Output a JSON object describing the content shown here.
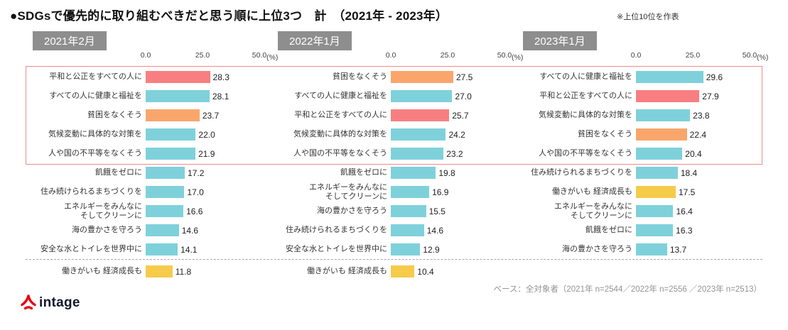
{
  "header": {
    "title": "●SDGsで優先的に取り組むべきだと思う順に上位3つ　計　（2021年 - 2023年）",
    "note": "※上位10位を作表"
  },
  "footer": {
    "base_note": "ベース：全対象者（2021年 n=2544／2022年 n=2556 ／2023年 n=2513）",
    "logo_text": "intage"
  },
  "palette": {
    "teal": "#7ed1da",
    "red": "#f87f81",
    "orange": "#f9a66d",
    "yellow": "#f6cb4a",
    "highlight_border": "#f08a8a",
    "period_badge_bg": "#8e8e8e",
    "logo_red": "#e60012"
  },
  "axis": {
    "ticks": [
      "0.0",
      "25.0",
      "50.0"
    ],
    "unit": "(%)",
    "max": 50
  },
  "chart_data": [
    {
      "type": "bar",
      "period": "2021年2月",
      "xlim": [
        0,
        50
      ],
      "items": [
        {
          "label": "平和と公正をすべての人に",
          "value": 28.3,
          "color": "red"
        },
        {
          "label": "すべての人に健康と福祉を",
          "value": 28.1,
          "color": "teal"
        },
        {
          "label": "貧困をなくそう",
          "value": 23.7,
          "color": "orange"
        },
        {
          "label": "気候変動に具体的な対策を",
          "value": 22.0,
          "color": "teal"
        },
        {
          "label": "人や国の不平等をなくそう",
          "value": 21.9,
          "color": "teal"
        },
        {
          "label": "飢餓をゼロに",
          "value": 17.2,
          "color": "teal"
        },
        {
          "label": "住み続けられるまちづくりを",
          "value": 17.0,
          "color": "teal"
        },
        {
          "label": "エネルギーをみんなに\nそしてクリーンに",
          "value": 16.6,
          "color": "teal"
        },
        {
          "label": "海の豊かさを守ろう",
          "value": 14.6,
          "color": "teal"
        },
        {
          "label": "安全な水とトイレを世界中に",
          "value": 14.1,
          "color": "teal"
        },
        {
          "label": "働きがいも 経済成長も",
          "value": 11.8,
          "color": "yellow",
          "below_line": true
        }
      ]
    },
    {
      "type": "bar",
      "period": "2022年1月",
      "xlim": [
        0,
        50
      ],
      "items": [
        {
          "label": "貧困をなくそう",
          "value": 27.5,
          "color": "orange"
        },
        {
          "label": "すべての人に健康と福祉を",
          "value": 27.0,
          "color": "teal"
        },
        {
          "label": "平和と公正をすべての人に",
          "value": 25.7,
          "color": "red"
        },
        {
          "label": "気候変動に具体的な対策を",
          "value": 24.2,
          "color": "teal"
        },
        {
          "label": "人や国の不平等をなくそう",
          "value": 23.2,
          "color": "teal"
        },
        {
          "label": "飢餓をゼロに",
          "value": 19.8,
          "color": "teal"
        },
        {
          "label": "エネルギーをみんなに\nそしてクリーンに",
          "value": 16.9,
          "color": "teal"
        },
        {
          "label": "海の豊かさを守ろう",
          "value": 15.5,
          "color": "teal"
        },
        {
          "label": "住み続けられるまちづくりを",
          "value": 14.6,
          "color": "teal"
        },
        {
          "label": "安全な水とトイレを世界中に",
          "value": 12.9,
          "color": "teal"
        },
        {
          "label": "働きがいも 経済成長も",
          "value": 10.4,
          "color": "yellow",
          "below_line": true
        }
      ]
    },
    {
      "type": "bar",
      "period": "2023年1月",
      "xlim": [
        0,
        50
      ],
      "items": [
        {
          "label": "すべての人に健康と福祉を",
          "value": 29.6,
          "color": "teal"
        },
        {
          "label": "平和と公正をすべての人に",
          "value": 27.9,
          "color": "red"
        },
        {
          "label": "気候変動に具体的な対策を",
          "value": 23.8,
          "color": "teal"
        },
        {
          "label": "貧困をなくそう",
          "value": 22.4,
          "color": "orange"
        },
        {
          "label": "人や国の不平等をなくそう",
          "value": 20.4,
          "color": "teal"
        },
        {
          "label": "住み続けられるまちづくりを",
          "value": 18.4,
          "color": "teal"
        },
        {
          "label": "働きがいも 経済成長も",
          "value": 17.5,
          "color": "yellow"
        },
        {
          "label": "エネルギーをみんなに\nそしてクリーンに",
          "value": 16.4,
          "color": "teal"
        },
        {
          "label": "飢餓をゼロに",
          "value": 16.3,
          "color": "teal"
        },
        {
          "label": "海の豊かさを守ろう",
          "value": 13.7,
          "color": "teal"
        }
      ]
    }
  ]
}
